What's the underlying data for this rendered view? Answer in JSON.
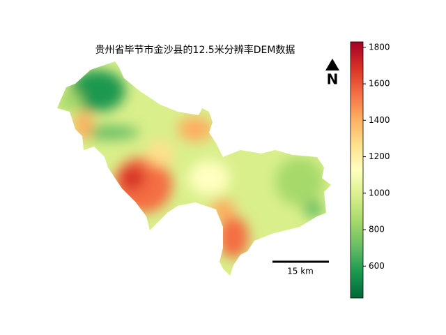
{
  "title": "贵州省毕节市金沙县的12.5米分辨率DEM数据",
  "colorbar": {
    "lim": [
      425,
      1830
    ],
    "ticks": [
      600,
      800,
      1000,
      1200,
      1400,
      1600,
      1800
    ],
    "colors": [
      "#006837",
      "#1a9850",
      "#66bd63",
      "#a6d96a",
      "#d9ef8b",
      "#ffffbf",
      "#fee08b",
      "#fdae61",
      "#f46d43",
      "#d73027",
      "#a50026"
    ]
  },
  "north_arrow": "N",
  "scale_bar": "15 km"
}
